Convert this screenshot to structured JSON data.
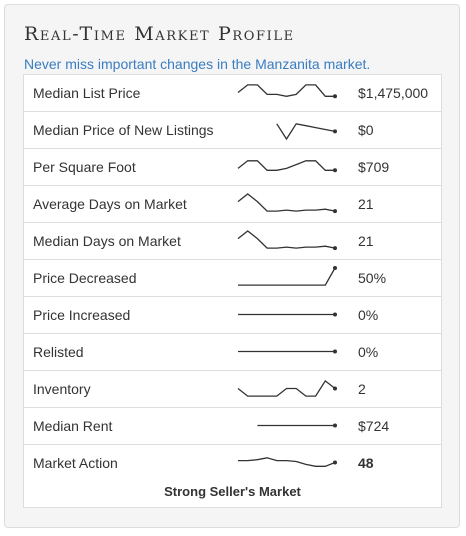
{
  "title": "Real-Time Market Profile",
  "subtitle": "Never miss important changes in the Manzanita market.",
  "rows": [
    {
      "label": "Median List Price",
      "value": "$1,475,000",
      "trend": [
        0.5,
        0.9,
        0.9,
        0.4,
        0.4,
        0.3,
        0.4,
        0.9,
        0.9,
        0.3,
        0.3
      ]
    },
    {
      "label": "Median Price of New Listings",
      "value": "$0",
      "trend": [
        null,
        null,
        null,
        null,
        0.8,
        0.0,
        0.8,
        0.7,
        0.6,
        0.5,
        0.4
      ]
    },
    {
      "label": "Per Square Foot",
      "value": "$709",
      "trend": [
        0.4,
        0.8,
        0.8,
        0.3,
        0.3,
        0.4,
        0.6,
        0.8,
        0.8,
        0.3,
        0.3
      ]
    },
    {
      "label": "Average Days on Market",
      "value": "21",
      "trend": [
        0.6,
        1.0,
        0.6,
        0.1,
        0.1,
        0.15,
        0.1,
        0.15,
        0.15,
        0.2,
        0.1
      ]
    },
    {
      "label": "Median Days on Market",
      "value": "21",
      "trend": [
        0.6,
        1.0,
        0.6,
        0.1,
        0.1,
        0.15,
        0.1,
        0.15,
        0.15,
        0.2,
        0.1
      ]
    },
    {
      "label": "Price Decreased",
      "value": "50%",
      "trend": [
        0.1,
        0.1,
        0.1,
        0.1,
        0.1,
        0.1,
        0.1,
        0.1,
        0.1,
        0.1,
        1.0
      ]
    },
    {
      "label": "Price Increased",
      "value": "0%",
      "trend": [
        0.5,
        0.5,
        0.5,
        0.5,
        0.5,
        0.5,
        0.5,
        0.5,
        0.5,
        0.5,
        0.5
      ]
    },
    {
      "label": "Relisted",
      "value": "0%",
      "trend": [
        0.5,
        0.5,
        0.5,
        0.5,
        0.5,
        0.5,
        0.5,
        0.5,
        0.5,
        0.5,
        0.5
      ]
    },
    {
      "label": "Inventory",
      "value": "2",
      "trend": [
        0.5,
        0.1,
        0.1,
        0.1,
        0.1,
        0.5,
        0.5,
        0.1,
        0.1,
        0.9,
        0.5
      ]
    },
    {
      "label": "Median Rent",
      "value": "$724",
      "trend": [
        null,
        null,
        0.5,
        0.5,
        0.5,
        0.5,
        0.5,
        0.5,
        0.5,
        0.5,
        0.5
      ]
    },
    {
      "label": "Market Action",
      "value": "48",
      "trend": [
        0.6,
        0.6,
        0.65,
        0.75,
        0.6,
        0.6,
        0.55,
        0.4,
        0.3,
        0.3,
        0.5
      ]
    }
  ],
  "market_action_status": "Strong Seller's Market",
  "colors": {
    "accent": "#3a7cc1",
    "spark_line": "#333333"
  }
}
